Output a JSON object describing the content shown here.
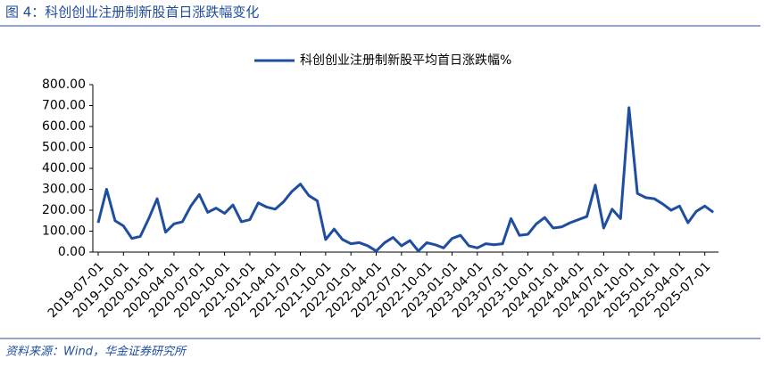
{
  "header": {
    "title": "图 4：科创创业注册制新股首日涨跌幅变化"
  },
  "chart_data": {
    "type": "line",
    "categories": [
      "2019-07-01",
      null,
      null,
      "2019-10-01",
      null,
      null,
      "2020-01-01",
      null,
      null,
      "2020-04-01",
      null,
      null,
      "2020-07-01",
      null,
      null,
      "2020-10-01",
      null,
      null,
      "2021-01-01",
      null,
      null,
      "2021-04-01",
      null,
      null,
      "2021-07-01",
      null,
      null,
      "2021-10-01",
      null,
      null,
      "2022-01-01",
      null,
      null,
      "2022-04-01",
      null,
      null,
      "2022-07-01",
      null,
      null,
      "2022-10-01",
      null,
      null,
      "2023-01-01",
      null,
      null,
      "2023-04-01",
      null,
      null,
      "2023-07-01",
      null,
      null,
      "2023-10-01",
      null,
      null,
      "2024-01-01",
      null,
      null,
      "2024-04-01",
      null,
      null,
      "2024-07-01",
      null,
      null,
      "2024-10-01",
      null,
      null,
      "2025-01-01",
      null,
      null,
      "2025-04-01",
      null,
      null,
      "2025-07-01",
      null
    ],
    "series": [
      {
        "name": "科创创业注册制新股平均首日涨跌幅%",
        "color": "#1f4ea0",
        "values": [
          140,
          300,
          150,
          125,
          65,
          75,
          160,
          255,
          95,
          135,
          145,
          220,
          275,
          190,
          210,
          185,
          225,
          145,
          155,
          235,
          215,
          205,
          240,
          290,
          325,
          270,
          245,
          60,
          110,
          60,
          40,
          45,
          30,
          5,
          45,
          70,
          30,
          55,
          5,
          45,
          35,
          20,
          65,
          80,
          30,
          20,
          40,
          35,
          40,
          160,
          80,
          85,
          135,
          165,
          115,
          120,
          140,
          155,
          170,
          320,
          115,
          205,
          160,
          690,
          280,
          260,
          255,
          230,
          200,
          220,
          140,
          195,
          220,
          190
        ]
      }
    ],
    "ylim": [
      0,
      800
    ],
    "yticks": [
      {
        "value": 0,
        "label": "0.00"
      },
      {
        "value": 100,
        "label": "100.00"
      },
      {
        "value": 200,
        "label": "200.00"
      },
      {
        "value": 300,
        "label": "300.00"
      },
      {
        "value": 400,
        "label": "400.00"
      },
      {
        "value": 500,
        "label": "500.00"
      },
      {
        "value": 600,
        "label": "600.00"
      },
      {
        "value": 700,
        "label": "700.00"
      },
      {
        "value": 800,
        "label": "800.00"
      }
    ],
    "legend": "top"
  },
  "footer": {
    "source": "资料来源：Wind，华金证券研究所"
  }
}
